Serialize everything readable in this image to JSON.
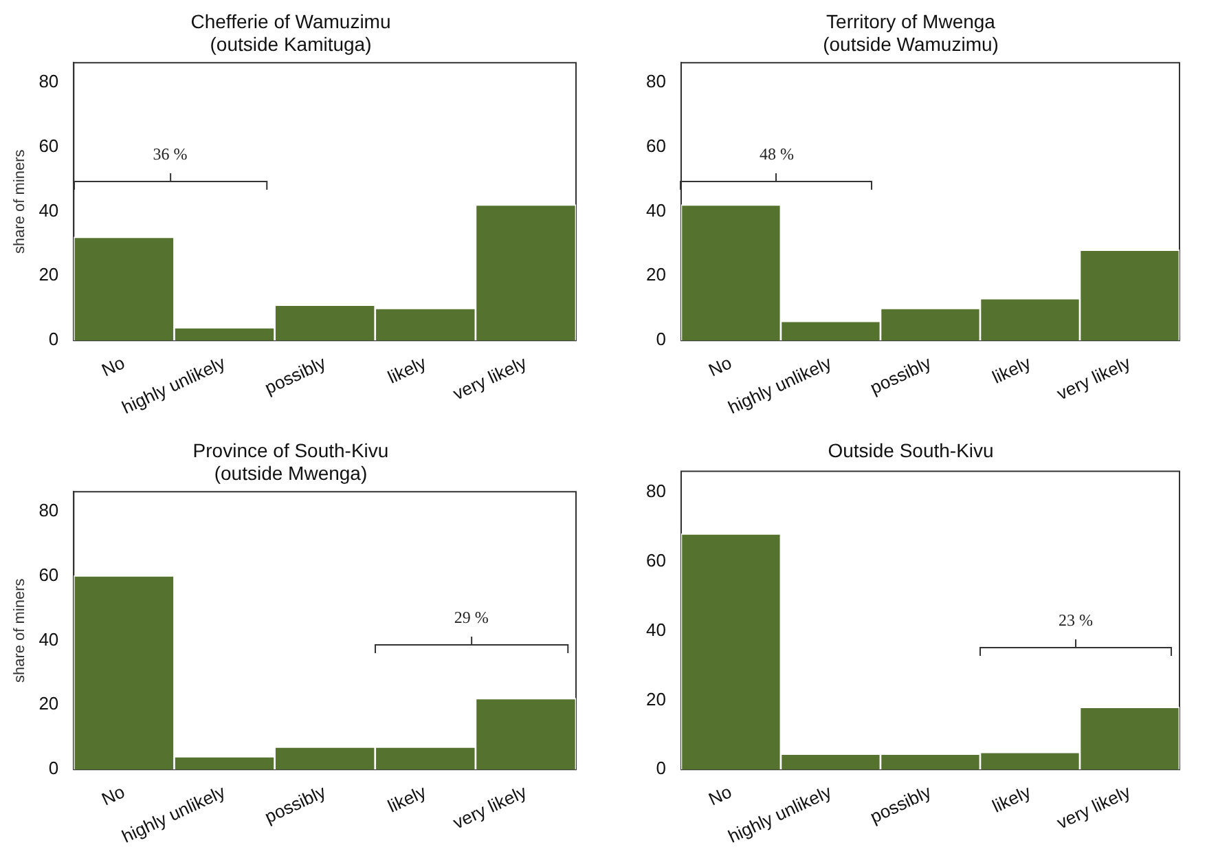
{
  "chart_data": [
    {
      "type": "bar",
      "title": "Chefferie of Wamuzimu",
      "subtitle": "(outside Kamituga)",
      "ylabel": "share of miners",
      "categories": [
        "No",
        "highly unlikely",
        "possibly",
        "likely",
        "very likely"
      ],
      "series": [
        {
          "color": "#55732e",
          "values": [
            32,
            4,
            11,
            10,
            42
          ]
        }
      ],
      "ylim": [
        0,
        86
      ],
      "yticks": [
        0,
        20,
        40,
        60,
        80
      ],
      "grid": false,
      "legend": false,
      "annotations": [
        "36 %"
      ]
    },
    {
      "type": "bar",
      "title": "Territory of Mwenga",
      "subtitle": "(outside Wamuzimu)",
      "categories": [
        "No",
        "highly unlikely",
        "possibly",
        "likely",
        "very likely"
      ],
      "series": [
        {
          "color": "#55732e",
          "values": [
            42,
            6,
            10,
            13,
            28
          ]
        }
      ],
      "ylim": [
        0,
        86
      ],
      "yticks": [
        0,
        20,
        40,
        60,
        80
      ],
      "grid": false,
      "legend": false,
      "annotations": [
        "48 %"
      ]
    },
    {
      "type": "bar",
      "title": "Province of South-Kivu",
      "subtitle": "(outside Mwenga)",
      "ylabel": "share of miners",
      "categories": [
        "No",
        "highly unlikely",
        "possibly",
        "likely",
        "very likely"
      ],
      "series": [
        {
          "color": "#55732e",
          "values": [
            60,
            4,
            7,
            7,
            22
          ]
        }
      ],
      "ylim": [
        0,
        86
      ],
      "yticks": [
        0,
        20,
        40,
        60,
        80
      ],
      "grid": false,
      "legend": false,
      "annotations": [
        "29 %"
      ]
    },
    {
      "type": "bar",
      "title": "Outside South-Kivu",
      "categories": [
        "No",
        "highly unlikely",
        "possibly",
        "likely",
        "very likely"
      ],
      "series": [
        {
          "color": "#55732e",
          "values": [
            68,
            4.5,
            4.5,
            5,
            18
          ]
        }
      ],
      "ylim": [
        0,
        86
      ],
      "yticks": [
        0,
        20,
        40,
        60,
        80
      ],
      "grid": false,
      "legend": false,
      "annotations": [
        "23 %"
      ]
    }
  ]
}
